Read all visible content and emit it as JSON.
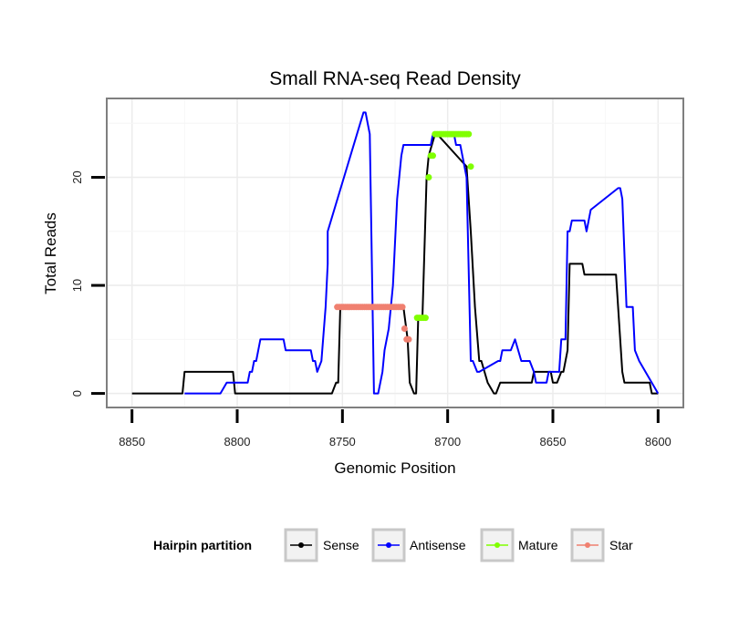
{
  "chart_data": {
    "type": "line",
    "title": "Small RNA-seq Read Density",
    "xlabel": "Genomic Position",
    "ylabel": "Total Reads",
    "x_reversed": true,
    "xlim": [
      8862,
      8588
    ],
    "ylim": [
      -1.3,
      27.3
    ],
    "x_ticks": [
      8850,
      8800,
      8750,
      8700,
      8650,
      8600
    ],
    "y_ticks": [
      0,
      10,
      20
    ],
    "grid": true,
    "legend": {
      "title": "Hairpin partition",
      "placement": "bottom",
      "entries": [
        "Sense",
        "Antisense",
        "Mature",
        "Star"
      ]
    },
    "series": [
      {
        "name": "Sense",
        "kind": "line",
        "color": "#000000",
        "x": [
          8850,
          8826,
          8825,
          8802,
          8801,
          8755,
          8753,
          8752,
          8751,
          8721,
          8719,
          8718,
          8716,
          8715,
          8714,
          8712,
          8710,
          8709,
          8706,
          8705,
          8691,
          8689,
          8687,
          8685,
          8684,
          8681,
          8678,
          8677,
          8675,
          8672,
          8671,
          8670,
          8669,
          8667,
          8660,
          8659,
          8651,
          8650,
          8648,
          8646,
          8645,
          8643,
          8642,
          8636,
          8635,
          8620,
          8619,
          8617,
          8616,
          8614,
          8604,
          8603,
          8600
        ],
        "y": [
          0,
          0,
          2,
          2,
          0,
          0,
          1,
          1,
          8,
          8,
          5,
          1,
          0,
          0,
          7,
          7,
          20,
          22,
          24,
          24,
          21,
          15,
          8,
          3,
          3,
          1,
          0,
          0,
          1,
          1,
          1,
          1,
          1,
          1,
          1,
          2,
          2,
          1,
          1,
          2,
          2,
          4,
          12,
          12,
          11,
          11,
          8,
          2,
          1,
          1,
          1,
          0,
          0
        ]
      },
      {
        "name": "Antisense",
        "kind": "line",
        "color": "#0000ff",
        "x": [
          8825,
          8808,
          8805,
          8795,
          8794,
          8793,
          8792,
          8791,
          8789,
          8778,
          8777,
          8766,
          8765,
          8764,
          8763,
          8762,
          8760,
          8758,
          8757,
          8757,
          8740,
          8739,
          8738,
          8737,
          8735,
          8733,
          8731,
          8730,
          8728,
          8726,
          8725,
          8724,
          8723,
          8722,
          8721,
          8720,
          8719,
          8708,
          8707,
          8706,
          8705,
          8697,
          8696,
          8694,
          8693,
          8691,
          8689,
          8688,
          8686,
          8685,
          8676,
          8675,
          8674,
          8672,
          8671,
          8670,
          8668,
          8665,
          8664,
          8661,
          8659,
          8658,
          8656,
          8655,
          8653,
          8652,
          8651,
          8649,
          8648,
          8647,
          8646,
          8644,
          8643,
          8642,
          8641,
          8635,
          8634,
          8633,
          8632,
          8619,
          8618,
          8617,
          8615,
          8614,
          8612,
          8611,
          8609,
          8600
        ],
        "y": [
          0,
          0,
          1,
          1,
          2,
          2,
          3,
          3,
          5,
          5,
          4,
          4,
          4,
          3,
          3,
          2,
          3,
          8,
          12,
          15,
          26,
          26,
          25,
          24,
          0,
          0,
          2,
          4,
          6,
          10,
          14,
          18,
          20,
          22,
          23,
          23,
          23,
          23,
          24,
          24,
          24,
          24,
          23,
          23,
          22,
          20,
          3,
          3,
          2,
          2,
          3,
          3,
          4,
          4,
          4,
          4,
          5,
          3,
          3,
          3,
          2,
          1,
          1,
          1,
          1,
          2,
          2,
          2,
          2,
          2,
          5,
          5,
          15,
          15,
          16,
          16,
          15,
          16,
          17,
          19,
          19,
          18,
          8,
          8,
          8,
          4,
          3,
          0
        ]
      },
      {
        "name": "Mature",
        "kind": "points",
        "color": "#80ff00",
        "x": [
          8714.5,
          8713.5,
          8712.5,
          8711.5,
          8710.5,
          8709,
          8708,
          8707,
          8706,
          8705,
          8704,
          8703,
          8702,
          8701,
          8700,
          8699,
          8698,
          8697,
          8696,
          8695,
          8694,
          8693,
          8692,
          8691,
          8690,
          8689
        ],
        "y": [
          7,
          7,
          7,
          7,
          7,
          20,
          22,
          22,
          24,
          24,
          24,
          24,
          24,
          24,
          24,
          24,
          24,
          24,
          24,
          24,
          24,
          24,
          24,
          24,
          24,
          21
        ]
      },
      {
        "name": "Star",
        "kind": "points",
        "color": "#f08070",
        "x": [
          8752.5,
          8751.5,
          8750.5,
          8749.5,
          8748.5,
          8747.5,
          8746.5,
          8745.5,
          8744.5,
          8743.5,
          8742.5,
          8741.5,
          8740.5,
          8739.5,
          8738.5,
          8737.5,
          8736.5,
          8735.5,
          8734.5,
          8733.5,
          8732.5,
          8731.5,
          8730.5,
          8729.5,
          8728.5,
          8727.5,
          8726.5,
          8725.5,
          8724.5,
          8723.5,
          8722.5,
          8721.5,
          8720.5,
          8719.5,
          8718.5
        ],
        "y": [
          8,
          8,
          8,
          8,
          8,
          8,
          8,
          8,
          8,
          8,
          8,
          8,
          8,
          8,
          8,
          8,
          8,
          8,
          8,
          8,
          8,
          8,
          8,
          8,
          8,
          8,
          8,
          8,
          8,
          8,
          8,
          8,
          6,
          5,
          5
        ]
      }
    ]
  }
}
